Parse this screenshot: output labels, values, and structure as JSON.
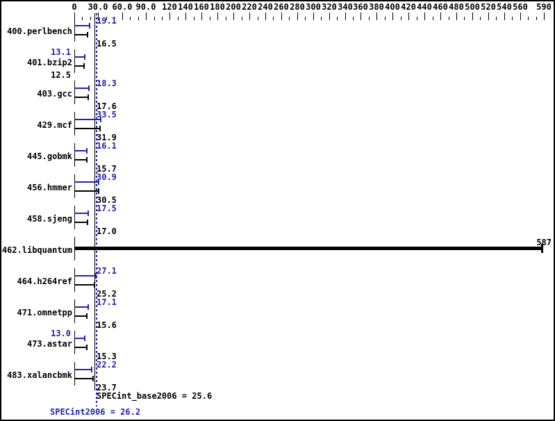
{
  "chart_data": {
    "type": "bar",
    "orientation": "horizontal",
    "title": "",
    "axis": {
      "position": "top",
      "xlim": [
        0,
        590
      ],
      "minor_tick_step": 10,
      "labeled_ticks": [
        {
          "value": 0,
          "label": "0"
        },
        {
          "value": 30,
          "label": "30.0"
        },
        {
          "value": 60,
          "label": "60.0"
        },
        {
          "value": 90,
          "label": "90.0"
        },
        {
          "value": 120,
          "label": "120"
        },
        {
          "value": 140,
          "label": "140"
        },
        {
          "value": 160,
          "label": "160"
        },
        {
          "value": 180,
          "label": "180"
        },
        {
          "value": 200,
          "label": "200"
        },
        {
          "value": 220,
          "label": "220"
        },
        {
          "value": 240,
          "label": "240"
        },
        {
          "value": 260,
          "label": "260"
        },
        {
          "value": 280,
          "label": "280"
        },
        {
          "value": 300,
          "label": "300"
        },
        {
          "value": 320,
          "label": "320"
        },
        {
          "value": 340,
          "label": "340"
        },
        {
          "value": 360,
          "label": "360"
        },
        {
          "value": 380,
          "label": "380"
        },
        {
          "value": 400,
          "label": "400"
        },
        {
          "value": 420,
          "label": "420"
        },
        {
          "value": 440,
          "label": "440"
        },
        {
          "value": 460,
          "label": "460"
        },
        {
          "value": 480,
          "label": "480"
        },
        {
          "value": 500,
          "label": "500"
        },
        {
          "value": 520,
          "label": "520"
        },
        {
          "value": 540,
          "label": "540"
        },
        {
          "value": 560,
          "label": "560"
        },
        {
          "value": 590,
          "label": "590"
        }
      ]
    },
    "series_legend": [
      {
        "name": "peak",
        "color": "#2222aa"
      },
      {
        "name": "base",
        "color": "#000000"
      }
    ],
    "rows": [
      {
        "name": "400.perlbench",
        "peak": 19.1,
        "base": 16.5,
        "peak_label": "19.1",
        "base_label": "16.5",
        "peak_side": "right",
        "base_side": "right"
      },
      {
        "name": "401.bzip2",
        "peak": 13.1,
        "base": 12.5,
        "peak_label": "13.1",
        "base_label": "12.5",
        "peak_side": "left",
        "base_side": "left"
      },
      {
        "name": "403.gcc",
        "peak": 18.3,
        "base": 17.6,
        "peak_label": "18.3",
        "base_label": "17.6",
        "peak_side": "right",
        "base_side": "right"
      },
      {
        "name": "429.mcf",
        "peak": 33.5,
        "base": 31.9,
        "peak_label": "33.5",
        "base_label": "31.9",
        "peak_side": "right",
        "base_side": "right"
      },
      {
        "name": "445.gobmk",
        "peak": 16.1,
        "base": 15.7,
        "peak_label": "16.1",
        "base_label": "15.7",
        "peak_side": "right",
        "base_side": "right"
      },
      {
        "name": "456.hmmer",
        "peak": 30.9,
        "base": 30.5,
        "peak_label": "30.9",
        "base_label": "30.5",
        "peak_side": "right",
        "base_side": "right"
      },
      {
        "name": "458.sjeng",
        "peak": 17.5,
        "base": 17.0,
        "peak_label": "17.5",
        "base_label": "17.0",
        "peak_side": "right",
        "base_side": "right"
      },
      {
        "name": "462.libquantum",
        "peak": 587,
        "base": 587,
        "single_bar": true,
        "bar_label": "587"
      },
      {
        "name": "464.h264ref",
        "peak": 27.1,
        "base": 25.2,
        "peak_label": "27.1",
        "base_label": "25.2",
        "peak_side": "right",
        "base_side": "right"
      },
      {
        "name": "471.omnetpp",
        "peak": 17.1,
        "base": 15.6,
        "peak_label": "17.1",
        "base_label": "15.6",
        "peak_side": "right",
        "base_side": "right"
      },
      {
        "name": "473.astar",
        "peak": 13.0,
        "base": 15.3,
        "peak_label": "13.0",
        "base_label": "15.3",
        "peak_side": "left",
        "base_side": "right"
      },
      {
        "name": "483.xalancbmk",
        "peak": 22.2,
        "base": 23.7,
        "peak_label": "22.2",
        "base_label": "23.7",
        "peak_side": "right",
        "base_side": "right"
      }
    ],
    "reference_lines": [
      {
        "name": "base",
        "label": "SPECint_base2006 = 25.6",
        "value": 25.6,
        "style": "solid",
        "color": "#000000"
      },
      {
        "name": "peak",
        "label": "SPECint2006 = 26.2",
        "value": 26.2,
        "style": "dotted",
        "color": "#2222aa"
      }
    ],
    "colors": {
      "peak": "#2222aa",
      "base": "#000000",
      "background": "#ffffff",
      "frame": "#000000"
    }
  }
}
